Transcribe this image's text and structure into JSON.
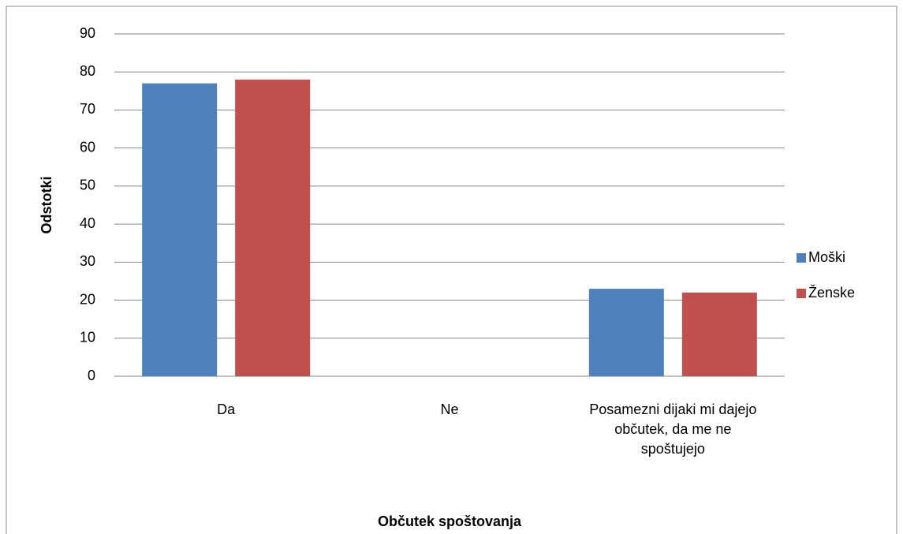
{
  "chart_data": {
    "type": "bar",
    "x_label": "Občutek spoštovanja",
    "y_label": "Odstotki",
    "categories": [
      "Da",
      "Ne",
      "Posamezni dijaki mi dajejo občutek, da me ne spoštujejo"
    ],
    "series": [
      {
        "name": "Moški",
        "color": "#4f81bd",
        "values": [
          77,
          0,
          23
        ]
      },
      {
        "name": "Ženske",
        "color": "#c0504d",
        "values": [
          78,
          0,
          22
        ]
      }
    ],
    "ylim": [
      0,
      90
    ],
    "yticks": [
      0,
      10,
      20,
      30,
      40,
      50,
      60,
      70,
      80,
      90
    ],
    "grid": true,
    "legend": "right"
  }
}
